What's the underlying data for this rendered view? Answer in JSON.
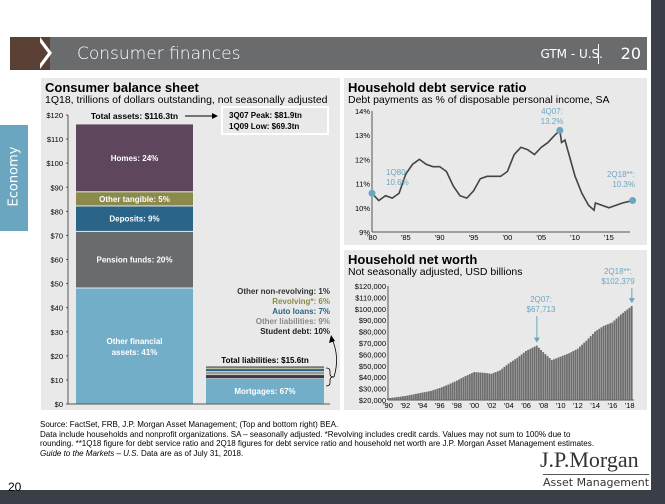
{
  "header": {
    "title": "Consumer finances",
    "series": "GTM - U.S.",
    "page": "20"
  },
  "side_tab": "Economy",
  "colors": {
    "homes": "#5e475c",
    "other_tangible": "#8b8a4a",
    "deposits": "#2b6489",
    "pension": "#6a6b6d",
    "other_financial": "#73aec8",
    "accent": "#6ba6c0",
    "line": "#444444",
    "bars": "#6d6d6d"
  },
  "chart_data": [
    {
      "type": "bar",
      "title": "Consumer balance sheet",
      "subtitle": "1Q18, trillions of dollars outstanding, not seasonally adjusted",
      "ylim": [
        0,
        120
      ],
      "yticks": [
        "$0",
        "$10",
        "$20",
        "$30",
        "$40",
        "$50",
        "$60",
        "$70",
        "$80",
        "$90",
        "$100",
        "$110",
        "$120"
      ],
      "assets": {
        "total_label": "Total assets: $116.3tn",
        "total": 116.3,
        "segments": [
          {
            "name": "Other financial assets: 41%",
            "line1": "Other financial",
            "line2": "assets: 41%",
            "pct": 41,
            "color": "#73aec8"
          },
          {
            "name": "Pension funds: 20%",
            "pct": 20,
            "color": "#6a6b6d"
          },
          {
            "name": "Deposits: 9%",
            "pct": 9,
            "color": "#2b6489"
          },
          {
            "name": "Other tangible: 5%",
            "pct": 5,
            "color": "#8b8a4a"
          },
          {
            "name": "Homes: 24%",
            "pct": 24,
            "color": "#5e475c"
          }
        ]
      },
      "liabilities": {
        "total_label": "Total liabilities: $15.6tn",
        "total": 15.6,
        "segments": [
          {
            "name": "Mortgages: 67%",
            "pct": 67,
            "color": "#73aec8"
          },
          {
            "name": "Student debt: 10%",
            "pct": 10,
            "color": "#3a3a3a"
          },
          {
            "name": "Other liabilities: 9%",
            "pct": 9,
            "color": "#9a9a9a"
          },
          {
            "name": "Auto loans: 7%",
            "pct": 7,
            "color": "#2b6489"
          },
          {
            "name": "Revolving*:  6%",
            "pct": 6,
            "color": "#8b8a4a"
          },
          {
            "name": "Other non-revolving: 1%",
            "pct": 1,
            "color": "#555555"
          }
        ]
      },
      "callout": {
        "peak": "3Q07 Peak: $81.9tn",
        "low": "1Q09 Low:  $69.3tn"
      }
    },
    {
      "type": "line",
      "title": "Household debt service ratio",
      "subtitle": "Debt payments as % of disposable personal income, SA",
      "ylim": [
        9,
        14
      ],
      "xlim": [
        1980,
        2019
      ],
      "yticks": [
        "9%",
        "10%",
        "11%",
        "12%",
        "13%",
        "14%"
      ],
      "xticks": [
        "'80",
        "'85",
        "'90",
        "'95",
        "'00",
        "'05",
        "'10",
        "'15"
      ],
      "x": [
        1980,
        1981,
        1982,
        1983,
        1984,
        1985,
        1986,
        1987,
        1988,
        1989,
        1990,
        1991,
        1992,
        1993,
        1994,
        1995,
        1996,
        1997,
        1998,
        1999,
        2000,
        2001,
        2002,
        2003,
        2004,
        2005,
        2006,
        2007,
        2007.75,
        2008,
        2008.5,
        2009,
        2010,
        2011,
        2012,
        2012.8,
        2013,
        2014,
        2015,
        2016,
        2017,
        2018.5
      ],
      "y": [
        10.6,
        10.3,
        10.5,
        10.4,
        10.6,
        11.4,
        11.8,
        12.0,
        11.8,
        11.7,
        11.7,
        11.5,
        10.9,
        10.5,
        10.4,
        10.7,
        11.2,
        11.3,
        11.3,
        11.3,
        11.5,
        12.2,
        12.5,
        12.4,
        12.2,
        12.5,
        12.7,
        13.0,
        13.2,
        12.7,
        12.8,
        12.3,
        11.3,
        10.6,
        10.1,
        9.9,
        10.2,
        10.1,
        10.0,
        10.1,
        10.2,
        10.3
      ],
      "annotations": [
        {
          "l1": "1Q80:",
          "l2": "10.6%",
          "x": 1980,
          "y": 10.6
        },
        {
          "l1": "4Q07:",
          "l2": "13.2%",
          "x": 2007.75,
          "y": 13.2
        },
        {
          "l1": "2Q18**:",
          "l2": "10.3%",
          "x": 2018.5,
          "y": 10.3
        }
      ]
    },
    {
      "type": "bar",
      "title": "Household net worth",
      "subtitle": "Not seasonally adjusted, USD billions",
      "ylim": [
        20000,
        120000
      ],
      "xlim": [
        1990,
        2018.5
      ],
      "yticks": [
        "$20,000",
        "$30,000",
        "$40,000",
        "$50,000",
        "$60,000",
        "$70,000",
        "$80,000",
        "$90,000",
        "$100,000",
        "$110,000",
        "$120,000"
      ],
      "xticks": [
        "'90",
        "'92",
        "'94",
        "'96",
        "'98",
        "'00",
        "'02",
        "'04",
        "'06",
        "'08",
        "'10",
        "'12",
        "'14",
        "'16",
        "'18"
      ],
      "x": [
        1990,
        1991,
        1992,
        1993,
        1994,
        1995,
        1996,
        1997,
        1998,
        1999,
        2000,
        2001,
        2002,
        2003,
        2004,
        2005,
        2006,
        2007.25,
        2008,
        2009,
        2010,
        2011,
        2012,
        2013,
        2014,
        2015,
        2016,
        2017,
        2018.25
      ],
      "y": [
        21500,
        22500,
        23500,
        25000,
        26500,
        28000,
        30500,
        33500,
        37000,
        41000,
        44500,
        44000,
        43000,
        46000,
        52000,
        57000,
        63000,
        67713,
        62000,
        55000,
        58000,
        61000,
        65000,
        72000,
        80000,
        85000,
        88000,
        95000,
        102379
      ],
      "annotations": [
        {
          "l1": "2Q07:",
          "l2": "$67,713",
          "x": 2007.25,
          "y": 67713
        },
        {
          "l1": "2Q18**:",
          "l2": "$102,379",
          "x": 2018.25,
          "y": 102379
        }
      ]
    }
  ],
  "footer": {
    "source": "Source: FactSet, FRB, J.P. Morgan Asset Management; (Top and bottom right) BEA.",
    "note": "Data include households and nonprofit organizations. SA – seasonally adjusted. *Revolving includes credit cards. Values may not sum to 100% due to rounding. **1Q18 figure for debt service ratio and 2Q18 figures for debt service ratio and household net worth are J.P. Morgan Asset Management estimates.",
    "guide": "Guide to the Markets – U.S.",
    "asof": " Data are as of July 31, 2018.",
    "page": "20"
  },
  "logo": {
    "brand": "J.P.Morgan",
    "sub": "Asset Management"
  }
}
